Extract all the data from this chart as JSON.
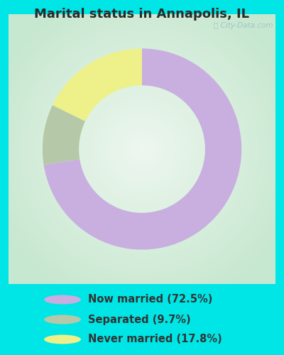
{
  "title": "Marital status in Annapolis, IL",
  "slices": [
    72.5,
    9.7,
    17.8
  ],
  "labels": [
    "Now married (72.5%)",
    "Separated (9.7%)",
    "Never married (17.8%)"
  ],
  "colors": [
    "#c9aee0",
    "#b5c9a8",
    "#eef08a"
  ],
  "background_cyan": "#00e5e5",
  "chart_bg_color": "#ddf0e4",
  "title_fontsize": 13,
  "legend_fontsize": 10.5,
  "startangle": 90,
  "outer_r": 0.82,
  "inner_r": 0.52
}
